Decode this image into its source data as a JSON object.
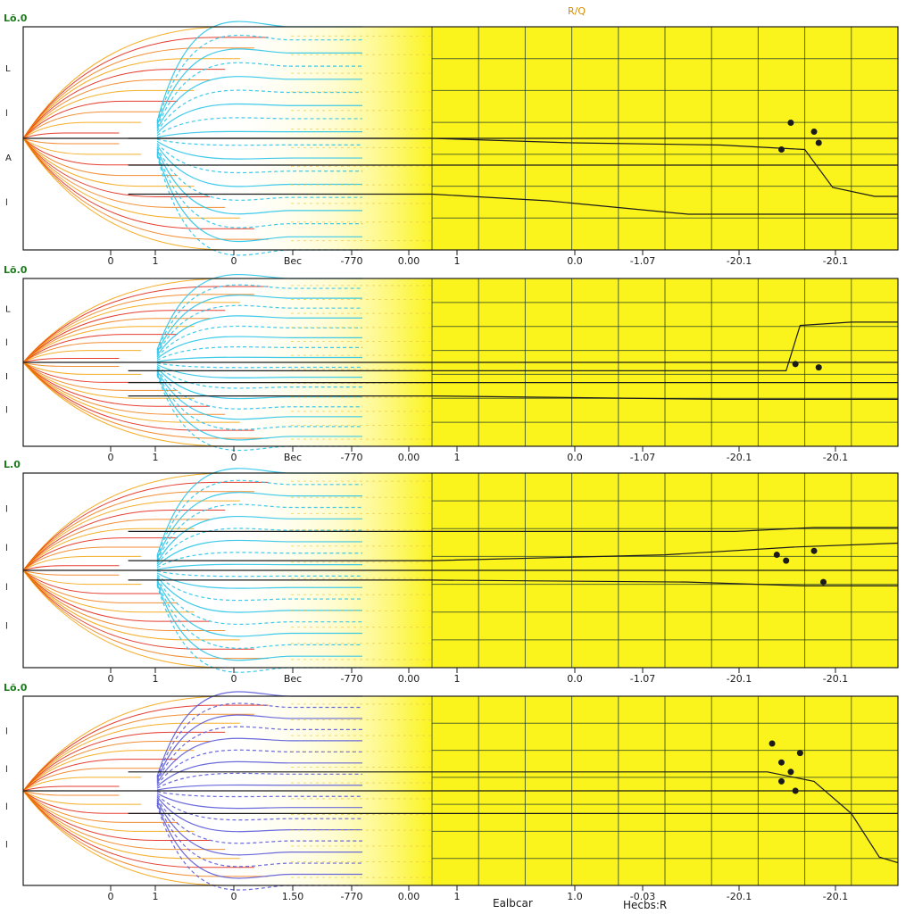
{
  "chart_data": [
    {
      "type": "line",
      "panel_label": "Lõ.0",
      "annotation": "R/Q",
      "y_labels": [
        "L",
        "l",
        "A",
        "l"
      ],
      "x_tick_labels": [
        "0",
        "1",
        "0",
        "Bec",
        "-770",
        "0.00",
        "1",
        "0.0",
        "-1.07",
        "-20.1",
        "-20.1"
      ],
      "grid": true,
      "yellow_region": true,
      "dark_lines": [
        {
          "points": [
            [
              0.0,
              0.62
            ],
            [
              1.0,
              0.62
            ]
          ]
        },
        {
          "points": [
            [
              0.0,
              0.75
            ],
            [
              0.25,
              0.78
            ],
            [
              0.55,
              0.84
            ],
            [
              1.0,
              0.84
            ]
          ]
        },
        {
          "points": [
            [
              0.0,
              0.5
            ],
            [
              0.3,
              0.52
            ],
            [
              0.62,
              0.53
            ],
            [
              0.8,
              0.55
            ],
            [
              0.86,
              0.72
            ],
            [
              0.95,
              0.76
            ],
            [
              1.0,
              0.76
            ]
          ]
        }
      ],
      "markers": [
        [
          0.75,
          0.55
        ],
        [
          0.83,
          0.52
        ],
        [
          0.82,
          0.47
        ],
        [
          0.77,
          0.43
        ]
      ]
    },
    {
      "type": "line",
      "panel_label": "Lõ.0",
      "y_labels": [
        "L",
        "l",
        "I",
        "l"
      ],
      "x_tick_labels": [
        "0",
        "1",
        "0",
        "Bec",
        "-770",
        "0.00",
        "1",
        "0.0",
        "-1.07",
        "-20.1",
        "-20.1"
      ],
      "grid": true,
      "yellow_region": true,
      "dark_lines": [
        {
          "points": [
            [
              0.0,
              0.62
            ],
            [
              1.0,
              0.62
            ]
          ]
        },
        {
          "points": [
            [
              0.0,
              0.55
            ],
            [
              0.5,
              0.55
            ],
            [
              0.76,
              0.55
            ],
            [
              0.79,
              0.28
            ],
            [
              0.9,
              0.26
            ],
            [
              1.0,
              0.26
            ]
          ]
        },
        {
          "points": [
            [
              0.0,
              0.7
            ],
            [
              0.62,
              0.72
            ],
            [
              1.0,
              0.72
            ]
          ]
        }
      ],
      "markers": [
        [
          0.78,
          0.51
        ],
        [
          0.83,
          0.53
        ]
      ]
    },
    {
      "type": "line",
      "panel_label": "L.0",
      "y_labels": [
        "l",
        "l",
        "l",
        "l"
      ],
      "x_tick_labels": [
        "0",
        "1",
        "0",
        "Bec",
        "-770",
        "0.00",
        "1",
        "0.0",
        "-1.07",
        "-20.1",
        "-20.1"
      ],
      "grid": true,
      "yellow_region": true,
      "dark_lines": [
        {
          "points": [
            [
              0.0,
              0.45
            ],
            [
              0.5,
              0.42
            ],
            [
              0.78,
              0.38
            ],
            [
              1.0,
              0.36
            ]
          ]
        },
        {
          "points": [
            [
              0.0,
              0.55
            ],
            [
              0.55,
              0.56
            ],
            [
              0.8,
              0.58
            ],
            [
              1.0,
              0.58
            ]
          ]
        },
        {
          "points": [
            [
              0.0,
              0.3
            ],
            [
              0.65,
              0.3
            ],
            [
              0.82,
              0.28
            ],
            [
              1.0,
              0.28
            ]
          ]
        }
      ],
      "markers": [
        [
          0.76,
          0.45
        ],
        [
          0.82,
          0.4
        ],
        [
          0.84,
          0.56
        ],
        [
          0.74,
          0.42
        ]
      ]
    },
    {
      "type": "line",
      "panel_label": "Lõ.0",
      "y_labels": [
        "l",
        "l",
        "l",
        "l"
      ],
      "x_tick_labels": [
        "0",
        "1",
        "0",
        "1.50",
        "-770",
        "0.00",
        "1",
        "1.0",
        "-0.03",
        "-20.1",
        "-20.1"
      ],
      "grid": true,
      "yellow_region": true,
      "dark_lines": [
        {
          "points": [
            [
              0.0,
              0.4
            ],
            [
              0.72,
              0.4
            ],
            [
              0.82,
              0.45
            ],
            [
              0.9,
              0.62
            ],
            [
              0.96,
              0.85
            ],
            [
              1.0,
              0.88
            ]
          ]
        },
        {
          "points": [
            [
              0.0,
              0.62
            ],
            [
              1.0,
              0.62
            ]
          ]
        }
      ],
      "markers": [
        [
          0.73,
          0.25
        ],
        [
          0.75,
          0.35
        ],
        [
          0.77,
          0.4
        ],
        [
          0.79,
          0.3
        ],
        [
          0.78,
          0.5
        ],
        [
          0.75,
          0.45
        ]
      ]
    }
  ],
  "footer": {
    "xlabel_left": "Ealbcar",
    "xlabel_right": "Hecbs:R"
  },
  "colors": {
    "yellow": "#fbf41c",
    "grid": "#1f3b2a",
    "red": "#e01c0c",
    "orange": "#f5a000",
    "cyan": "#2ac4e8",
    "blue": "#2c2cd8",
    "green": "#1c8a1c",
    "dark": "#1b1b1b"
  }
}
